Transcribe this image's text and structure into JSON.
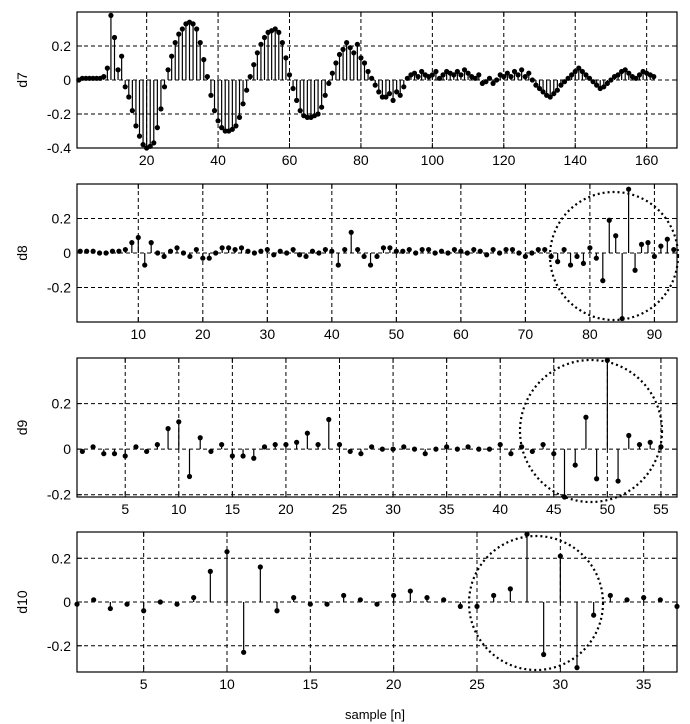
{
  "chart_data": [
    {
      "type": "stem",
      "ylabel": "d7",
      "xlabel": "",
      "xlim": [
        0.5,
        168.5
      ],
      "ylim": [
        -0.4,
        0.4
      ],
      "xticks": [
        20,
        40,
        60,
        80,
        100,
        120,
        140,
        160
      ],
      "yticks": [
        -0.4,
        -0.2,
        0,
        0.2
      ],
      "grid": true,
      "x_start": 1,
      "values": [
        0,
        0.01,
        0.01,
        0.01,
        0.01,
        0.01,
        0.01,
        0.02,
        0.07,
        0.38,
        0.25,
        0.06,
        0.14,
        -0.04,
        -0.1,
        -0.18,
        -0.27,
        -0.33,
        -0.38,
        -0.4,
        -0.39,
        -0.37,
        -0.28,
        -0.17,
        -0.04,
        0.06,
        0.14,
        0.22,
        0.27,
        0.3,
        0.33,
        0.34,
        0.33,
        0.3,
        0.22,
        0.12,
        0.02,
        -0.09,
        -0.18,
        -0.24,
        -0.28,
        -0.3,
        -0.3,
        -0.29,
        -0.27,
        -0.22,
        -0.14,
        -0.06,
        0.02,
        0.09,
        0.16,
        0.21,
        0.25,
        0.28,
        0.29,
        0.3,
        0.28,
        0.22,
        0.13,
        0.03,
        -0.05,
        -0.12,
        -0.18,
        -0.21,
        -0.22,
        -0.22,
        -0.21,
        -0.2,
        -0.16,
        -0.09,
        -0.02,
        0.04,
        0.1,
        0.15,
        0.18,
        0.22,
        0.19,
        0.16,
        0.21,
        0.13,
        0.1,
        0.05,
        0.01,
        -0.03,
        -0.07,
        -0.1,
        -0.1,
        -0.08,
        -0.12,
        -0.07,
        -0.09,
        -0.04,
        0.01,
        0.03,
        0.04,
        0.02,
        0.05,
        0.03,
        0.02,
        0.03,
        0.05,
        0.01,
        0.03,
        0.05,
        0.04,
        0.03,
        0.05,
        0.03,
        0.06,
        0.04,
        0.02,
        0.01,
        0.03,
        -0.02,
        -0.01,
        0.01,
        -0.02,
        0,
        0.03,
        0.02,
        0.04,
        0.02,
        0.05,
        0.03,
        0.06,
        0.02,
        0.04,
        0,
        -0.03,
        -0.05,
        -0.07,
        -0.09,
        -0.1,
        -0.08,
        -0.06,
        -0.03,
        -0.01,
        0.01,
        0.03,
        0.05,
        0.07,
        0.05,
        0.03,
        0.01,
        -0.01,
        -0.03,
        -0.05,
        -0.04,
        -0.02,
        0,
        0.02,
        0.03,
        0.05,
        0.06,
        0.04,
        0.02,
        0.01,
        0.03,
        0.05,
        0.04,
        0.03,
        0.02
      ]
    },
    {
      "type": "stem",
      "ylabel": "d8",
      "xlabel": "",
      "xlim": [
        0.5,
        93.5
      ],
      "ylim": [
        -0.4,
        0.4
      ],
      "xticks": [
        10,
        20,
        30,
        40,
        50,
        60,
        70,
        80,
        90
      ],
      "yticks": [
        -0.2,
        0,
        0.2
      ],
      "grid": true,
      "x_start": 1,
      "values": [
        0.01,
        0.01,
        0.01,
        0,
        0,
        0.01,
        0.01,
        0.02,
        0.06,
        0.09,
        -0.07,
        0.06,
        0,
        -0.02,
        0.01,
        0.03,
        0,
        -0.02,
        0.02,
        -0.03,
        -0.03,
        0,
        0.03,
        0.03,
        0.02,
        0.03,
        0.01,
        0,
        0.01,
        0.02,
        -0.01,
        0.01,
        0,
        0.02,
        -0.01,
        -0.02,
        0.01,
        0,
        0.02,
        0.01,
        -0.07,
        0.02,
        0.12,
        0.02,
        -0.02,
        -0.07,
        -0.02,
        0.03,
        0.03,
        0.01,
        0.01,
        0.02,
        0,
        0.02,
        0.02,
        0,
        0.01,
        0,
        0.02,
        0.01,
        0,
        0.02,
        0.01,
        -0.01,
        0.02,
        0,
        0.02,
        0.02,
        0,
        -0.02,
        0,
        0.02,
        0.02,
        -0.02,
        -0.05,
        0.02,
        -0.07,
        -0.02,
        -0.06,
        0.03,
        -0.03,
        -0.16,
        0.19,
        0.1,
        -0.38,
        0.37,
        -0.1,
        0.05,
        0.06,
        -0.02,
        0.04,
        0.08,
        0.02
      ]
    },
    {
      "type": "stem",
      "ylabel": "d9",
      "xlabel": "",
      "xlim": [
        0.5,
        56.5
      ],
      "ylim": [
        -0.21,
        0.4
      ],
      "xticks": [
        5,
        10,
        15,
        20,
        25,
        30,
        35,
        40,
        45,
        50,
        55
      ],
      "yticks": [
        -0.2,
        0,
        0.2
      ],
      "grid": true,
      "x_start": 1,
      "values": [
        -0.01,
        0.01,
        -0.02,
        -0.02,
        -0.03,
        0.01,
        -0.01,
        0.02,
        0.09,
        0.12,
        -0.12,
        0.05,
        -0.01,
        0.02,
        -0.03,
        -0.03,
        -0.04,
        0.01,
        0.02,
        0.02,
        0.03,
        0.07,
        0.02,
        0.13,
        0.02,
        -0.01,
        -0.02,
        0.01,
        0,
        0,
        0.01,
        0,
        -0.02,
        0,
        0.01,
        0,
        0.01,
        0,
        0,
        0.02,
        -0.02,
        0.01,
        -0.01,
        0.02,
        -0.02,
        -0.21,
        -0.07,
        0.14,
        -0.13,
        0.39,
        -0.14,
        0.06,
        0.02,
        0.03,
        0.01
      ]
    },
    {
      "type": "stem",
      "ylabel": "d10",
      "xlabel": "sample [n]",
      "xlim": [
        1,
        37
      ],
      "ylim": [
        -0.32,
        0.32
      ],
      "xticks": [
        5,
        10,
        15,
        20,
        25,
        30,
        35
      ],
      "yticks": [
        -0.2,
        0,
        0.2
      ],
      "grid": true,
      "x_start": 1,
      "values": [
        -0.01,
        0.01,
        -0.03,
        -0.01,
        -0.04,
        0,
        -0.01,
        0.02,
        0.14,
        0.23,
        -0.23,
        0.16,
        -0.04,
        0.02,
        -0.01,
        -0.01,
        0.03,
        0.01,
        -0.01,
        0.03,
        0.05,
        0.02,
        0.01,
        -0.02,
        -0.02,
        0.03,
        0.06,
        0.31,
        -0.24,
        0.21,
        -0.3,
        -0.06,
        0.03,
        0.01,
        0.02,
        0.01,
        -0.02
      ]
    }
  ]
}
